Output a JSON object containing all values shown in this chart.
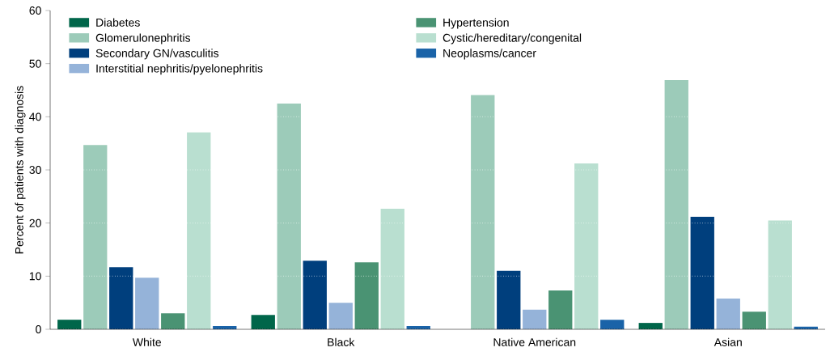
{
  "chart_data": {
    "type": "bar",
    "ylabel": "Percent of patients with diagnosis",
    "categories": [
      "White",
      "Black",
      "Native American",
      "Asian"
    ],
    "series": [
      {
        "name": "Diabetes",
        "color": "#00664a",
        "values": [
          1.8,
          2.7,
          0,
          1.2
        ]
      },
      {
        "name": "Glomerulonephritis",
        "color": "#9ccbb9",
        "values": [
          34.7,
          42.5,
          44.1,
          46.9
        ]
      },
      {
        "name": "Secondary GN/vasculitis",
        "color": "#003f7d",
        "values": [
          11.7,
          12.9,
          11.0,
          21.2
        ]
      },
      {
        "name": "Interstitial nephritis/pyelonephritis",
        "color": "#95b3d9",
        "values": [
          9.7,
          5.0,
          3.7,
          5.8
        ]
      },
      {
        "name": "Hypertension",
        "color": "#4a9373",
        "values": [
          3.0,
          12.6,
          7.3,
          3.3
        ]
      },
      {
        "name": "Cystic/hereditary/congenital",
        "color": "#b9dfd0",
        "values": [
          37.1,
          22.7,
          31.2,
          20.5
        ]
      },
      {
        "name": "Neoplasms/cancer",
        "color": "#1a63a8",
        "values": [
          0.6,
          0.6,
          1.8,
          0.5
        ]
      }
    ],
    "ylim": [
      0,
      60
    ],
    "yticks": [
      0,
      10,
      20,
      30,
      40,
      50,
      60
    ],
    "grid": "y",
    "legend": "top left"
  }
}
